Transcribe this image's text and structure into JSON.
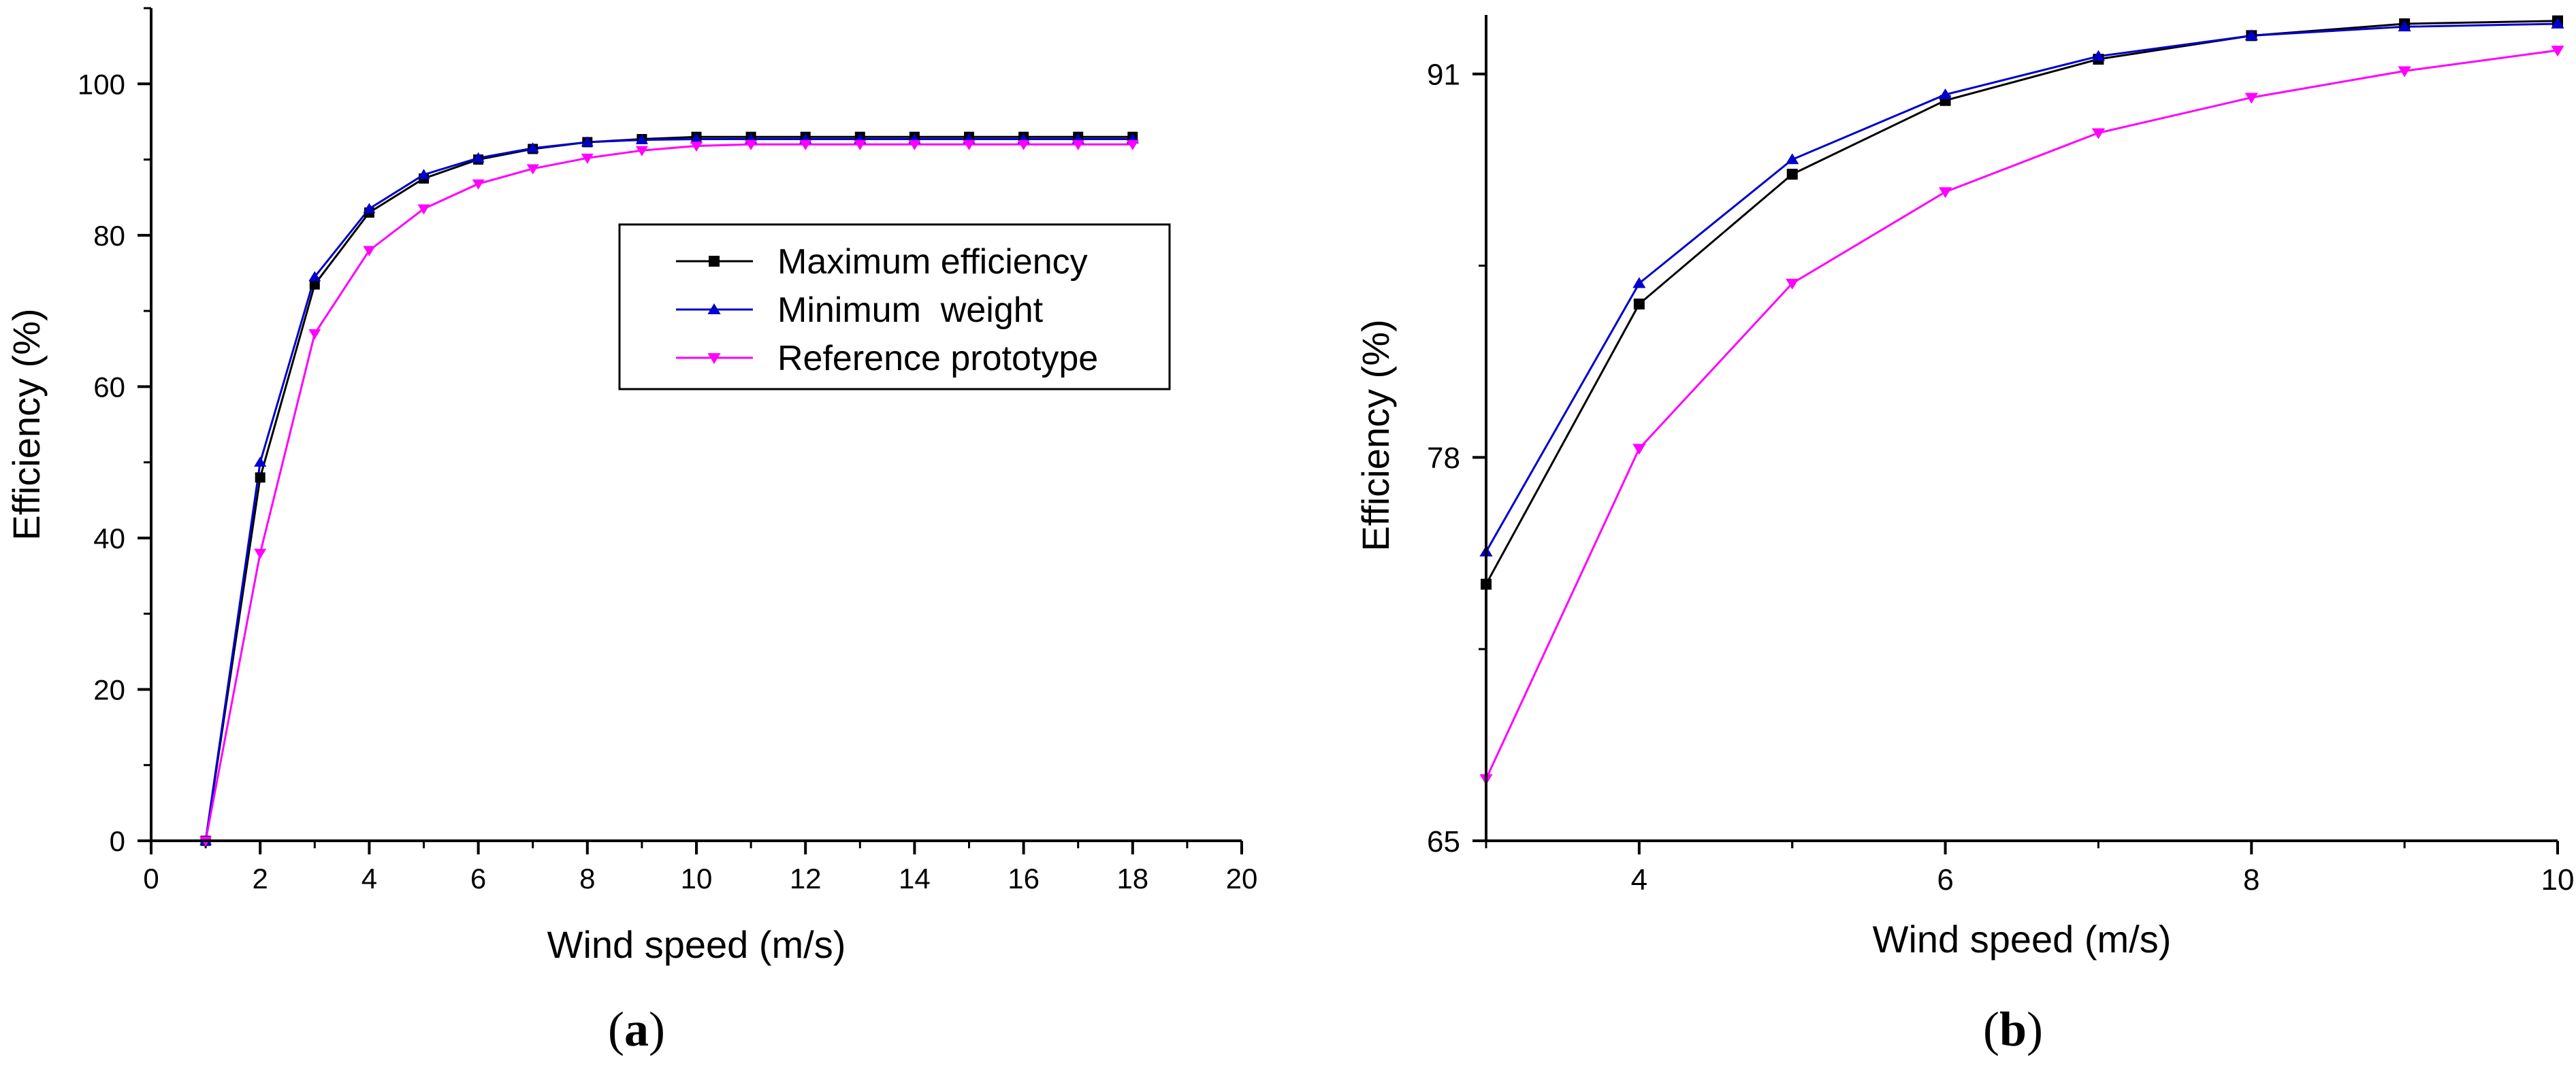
{
  "colors": {
    "maximum_efficiency": "#000000",
    "minimum_weight": "#0000cc",
    "reference_prototype": "#ff00ff",
    "axis": "#000000"
  },
  "chart_data": [
    {
      "type": "line",
      "caption": "a",
      "xlabel": "Wind speed (m/s)",
      "ylabel": "Efficiency (%)",
      "xlim": [
        0,
        20
      ],
      "ylim": [
        0,
        110
      ],
      "xticks": [
        0,
        2,
        4,
        6,
        8,
        10,
        12,
        14,
        16,
        18,
        20
      ],
      "yticks": [
        0,
        20,
        40,
        60,
        80,
        100
      ],
      "legend_position": "right-middle",
      "series": [
        {
          "name": "Maximum efficiency",
          "marker": "square",
          "color": "#000000",
          "x": [
            1,
            2,
            3,
            4,
            5,
            6,
            7,
            8,
            9,
            10,
            11,
            12,
            13,
            14,
            15,
            16,
            17,
            18
          ],
          "y": [
            0,
            48,
            73.5,
            83,
            87.5,
            90,
            91.4,
            92.3,
            92.7,
            93,
            93,
            93,
            93,
            93,
            93,
            93,
            93,
            93
          ]
        },
        {
          "name": "Minimum  weight",
          "marker": "triangle-up",
          "color": "#0000cc",
          "x": [
            1,
            2,
            3,
            4,
            5,
            6,
            7,
            8,
            9,
            10,
            11,
            12,
            13,
            14,
            15,
            16,
            17,
            18
          ],
          "y": [
            0,
            50,
            74.5,
            83.5,
            88,
            90.2,
            91.5,
            92.3,
            92.6,
            92.7,
            92.7,
            92.7,
            92.7,
            92.7,
            92.7,
            92.7,
            92.7,
            92.7
          ]
        },
        {
          "name": "Reference prototype",
          "marker": "triangle-down",
          "color": "#ff00ff",
          "x": [
            1,
            2,
            3,
            4,
            5,
            6,
            7,
            8,
            9,
            10,
            11,
            12,
            13,
            14,
            15,
            16,
            17,
            18
          ],
          "y": [
            0,
            38,
            67,
            78,
            83.5,
            86.8,
            88.8,
            90.2,
            91.2,
            91.8,
            92,
            92,
            92,
            92,
            92,
            92,
            92,
            92
          ]
        }
      ]
    },
    {
      "type": "line",
      "caption": "b",
      "xlabel": "Wind speed (m/s)",
      "ylabel": "Efficiency (%)",
      "xlim": [
        3,
        10
      ],
      "ylim": [
        65,
        93
      ],
      "xticks": [
        4,
        6,
        8,
        10
      ],
      "yticks": [
        65,
        78,
        91
      ],
      "series": [
        {
          "name": "Maximum efficiency",
          "marker": "square",
          "color": "#000000",
          "x": [
            3,
            4,
            5,
            6,
            7,
            8,
            9,
            10
          ],
          "y": [
            73.7,
            83.2,
            87.6,
            90.1,
            91.5,
            92.3,
            92.7,
            92.8
          ]
        },
        {
          "name": "Minimum  weight",
          "marker": "triangle-up",
          "color": "#0000cc",
          "x": [
            3,
            4,
            5,
            6,
            7,
            8,
            9,
            10
          ],
          "y": [
            74.8,
            83.9,
            88.1,
            90.3,
            91.6,
            92.3,
            92.6,
            92.7
          ]
        },
        {
          "name": "Reference prototype",
          "marker": "triangle-down",
          "color": "#ff00ff",
          "x": [
            3,
            4,
            5,
            6,
            7,
            8,
            9,
            10
          ],
          "y": [
            67.1,
            78.3,
            83.9,
            87,
            89,
            90.2,
            91.1,
            91.8
          ]
        }
      ]
    }
  ]
}
